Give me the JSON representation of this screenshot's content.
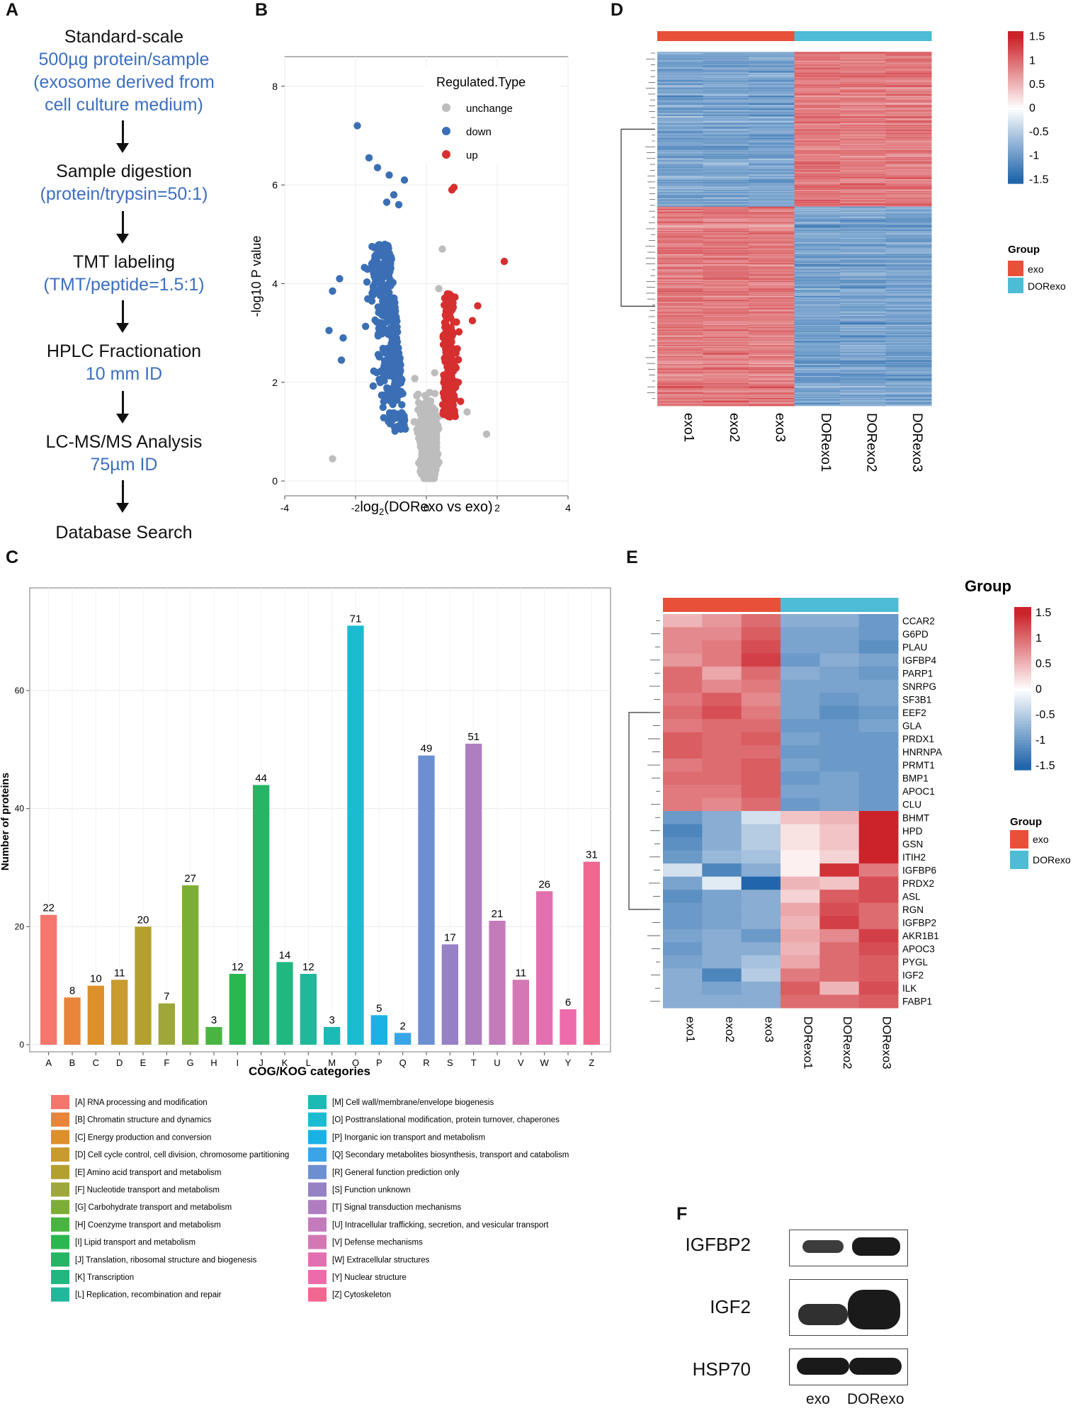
{
  "panels": {
    "A": "A",
    "B": "B",
    "C": "C",
    "D": "D",
    "E": "E",
    "F": "F"
  },
  "colors": {
    "blue_text": "#3d6fbf",
    "up": "#d62f2f",
    "down": "#3b6fb5",
    "unchange": "#bdbdbd",
    "group_exo": "#e8503a",
    "group_dorexo": "#4dbcd4",
    "heat_high": "#cc2229",
    "heat_mid": "#ffffff",
    "heat_low": "#2166ac"
  },
  "workflow": [
    {
      "title": "Standard-scale",
      "details": [
        "500µg protein/sample",
        "(exosome derived from",
        "cell culture medium)"
      ]
    },
    {
      "title": "Sample digestion",
      "details": [
        "(protein/trypsin=50:1)"
      ]
    },
    {
      "title": "TMT labeling",
      "details": [
        "(TMT/peptide=1.5:1)"
      ]
    },
    {
      "title": "HPLC Fractionation",
      "details": [
        "10 mm ID"
      ]
    },
    {
      "title": "LC-MS/MS Analysis",
      "details": [
        "75µm ID"
      ]
    },
    {
      "title": "Database Search",
      "details": []
    }
  ],
  "chart_data": [
    {
      "id": "B",
      "type": "scatter",
      "title": "",
      "xlabel_main": "log",
      "xlabel_sub": "2",
      "xlabel_rest": "(DORexo  vs exo)",
      "ylabel": "-log10 P value",
      "xlim": [
        -4,
        4
      ],
      "ylim": [
        -0.3,
        8.6
      ],
      "xticks": [
        "-4",
        "-2",
        "0",
        "2",
        "4"
      ],
      "yticks": [
        "0",
        "2",
        "4",
        "6",
        "8"
      ],
      "legend_title": "Regulated.Type",
      "legend": [
        "unchange",
        "down",
        "up"
      ],
      "highlight_points": {
        "down": [
          [
            -1.95,
            7.2
          ],
          [
            -1.62,
            6.55
          ],
          [
            -1.38,
            6.35
          ],
          [
            -1.05,
            6.2
          ],
          [
            -0.62,
            6.1
          ],
          [
            -0.92,
            5.8
          ],
          [
            -1.12,
            5.65
          ],
          [
            -0.78,
            5.6
          ],
          [
            -2.45,
            4.1
          ],
          [
            -2.65,
            3.85
          ],
          [
            -2.75,
            3.05
          ],
          [
            -2.35,
            2.9
          ],
          [
            -2.4,
            2.45
          ]
        ],
        "up": [
          [
            0.78,
            5.95
          ],
          [
            0.72,
            5.9
          ],
          [
            2.2,
            4.45
          ],
          [
            1.45,
            3.55
          ],
          [
            1.3,
            3.25
          ],
          [
            0.9,
            2.0
          ],
          [
            0.6,
            1.75
          ]
        ],
        "unchange": [
          [
            -2.65,
            0.45
          ],
          [
            0.45,
            4.7
          ],
          [
            0.35,
            3.9
          ],
          [
            1.15,
            1.4
          ],
          [
            1.7,
            0.95
          ]
        ]
      },
      "counts": {
        "down": 340,
        "up": 210,
        "unchange": 700
      }
    },
    {
      "id": "C",
      "type": "bar",
      "title": "",
      "xlabel": "COG/KOG categories",
      "ylabel": "Number of proteins",
      "ylim": [
        0,
        75
      ],
      "yticks": [
        "0",
        "20",
        "40",
        "60"
      ],
      "categories": [
        "A",
        "B",
        "C",
        "D",
        "E",
        "F",
        "G",
        "H",
        "I",
        "J",
        "K",
        "L",
        "M",
        "O",
        "P",
        "Q",
        "R",
        "S",
        "T",
        "U",
        "V",
        "W",
        "Y",
        "Z"
      ],
      "values": [
        22,
        8,
        10,
        11,
        20,
        7,
        27,
        3,
        12,
        44,
        14,
        12,
        3,
        71,
        5,
        2,
        49,
        17,
        51,
        21,
        11,
        26,
        6,
        31
      ],
      "bar_colors": [
        "#f4766d",
        "#e9843b",
        "#dd8f2a",
        "#c99a2d",
        "#b4a02e",
        "#9ea83a",
        "#7cae35",
        "#49b540",
        "#2bb750",
        "#26b565",
        "#21b781",
        "#1fb89a",
        "#1cbab4",
        "#1bbbd1",
        "#1ab2e5",
        "#3aa4e8",
        "#6c8fd2",
        "#9681c5",
        "#ae7ec0",
        "#c47bbc",
        "#d378b3",
        "#e270b0",
        "#ee6bab",
        "#f2678f"
      ],
      "legend_left": [
        "[A] RNA processing and modification",
        "[B] Chromatin structure and dynamics",
        "[C] Energy production and conversion",
        "[D] Cell cycle control, cell division, chromosome partitioning",
        "[E] Amino acid transport and metabolism",
        "[F] Nucleotide transport and metabolism",
        "[G] Carbohydrate transport and metabolism",
        "[H] Coenzyme transport and metabolism",
        "[I] Lipid transport and metabolism",
        "[J] Translation, ribosomal structure and biogenesis",
        "[K] Transcription",
        "[L] Replication, recombination and repair"
      ],
      "legend_right": [
        "[M] Cell wall/membrane/envelope biogenesis",
        "[O] Posttranslational modification, protein turnover, chaperones",
        "[P] Inorganic ion transport and metabolism",
        "[Q] Secondary metabolites biosynthesis, transport and catabolism",
        "[R] General function prediction only",
        "[S] Function unknown",
        "[T] Signal transduction mechanisms",
        "[U] Intracellular trafficking, secretion, and vesicular transport",
        "[V] Defense mechanisms",
        "[W] Extracellular structures",
        "[Y] Nuclear structure",
        "[Z] Cytoskeleton"
      ]
    },
    {
      "id": "D",
      "type": "heatmap",
      "title": "",
      "samples": [
        "exo1",
        "exo2",
        "exo3",
        "DORexo1",
        "DORexo2",
        "DORexo3"
      ],
      "groups": [
        "exo",
        "exo",
        "exo",
        "DORexo",
        "DORexo",
        "DORexo"
      ],
      "scale_ticks": [
        "1.5",
        "1",
        "0.5",
        "0",
        "-0.5",
        "-1",
        "-1.5"
      ],
      "scale_range": [
        -1.5,
        1.5
      ],
      "legend_title": "Group",
      "legend": [
        "exo",
        "DORexo"
      ],
      "row_clusters": [
        {
          "rows": 140,
          "exo_mean": -0.9,
          "dorexo_mean": 0.9
        },
        {
          "rows": 180,
          "exo_mean": 0.9,
          "dorexo_mean": -0.9
        }
      ]
    },
    {
      "id": "E",
      "type": "heatmap",
      "title": "",
      "samples": [
        "exo1",
        "exo2",
        "exo3",
        "DORexo1",
        "DORexo2",
        "DORexo3"
      ],
      "groups": [
        "exo",
        "exo",
        "exo",
        "DORexo",
        "DORexo",
        "DORexo"
      ],
      "group_label": "Group",
      "scale_ticks": [
        "1.5",
        "1",
        "0.5",
        "0",
        "-0.5",
        "-1",
        "-1.5"
      ],
      "scale_range": [
        -1.5,
        1.5
      ],
      "legend_title": "Group",
      "legend": [
        "exo",
        "DORexo"
      ],
      "genes": [
        "CCAR2",
        "G6PD",
        "PLAU",
        "IGFBP4",
        "PARP1",
        "SNRPG",
        "SF3B1",
        "EEF2",
        "GLA",
        "PRDX1",
        "HNRNPA",
        "PRMT1",
        "BMP1",
        "APOC1",
        "CLU",
        "BHMT",
        "HPD",
        "GSN",
        "ITIH2",
        "IGFBP6",
        "PRDX2",
        "ASL",
        "RGN",
        "IGFBP2",
        "AKR1B1",
        "APOC3",
        "PYGL",
        "IGF2",
        "ILK",
        "FABP1"
      ],
      "values": [
        [
          0.5,
          0.7,
          1.0,
          -0.8,
          -0.8,
          -1.0
        ],
        [
          0.8,
          0.8,
          1.1,
          -0.9,
          -0.9,
          -1.0
        ],
        [
          0.8,
          0.9,
          1.2,
          -0.9,
          -0.9,
          -1.1
        ],
        [
          0.7,
          0.9,
          1.3,
          -1.0,
          -0.8,
          -0.9
        ],
        [
          1.0,
          0.6,
          1.0,
          -0.8,
          -0.9,
          -1.0
        ],
        [
          1.0,
          0.8,
          0.9,
          -0.9,
          -0.9,
          -0.9
        ],
        [
          0.9,
          1.1,
          0.8,
          -0.9,
          -1.0,
          -0.9
        ],
        [
          1.0,
          1.2,
          0.9,
          -0.9,
          -1.1,
          -1.0
        ],
        [
          0.9,
          1.0,
          1.0,
          -1.0,
          -1.0,
          -0.9
        ],
        [
          1.1,
          1.0,
          1.1,
          -0.9,
          -1.0,
          -1.0
        ],
        [
          1.1,
          1.0,
          1.0,
          -1.0,
          -1.0,
          -1.0
        ],
        [
          0.9,
          1.0,
          1.1,
          -0.9,
          -1.0,
          -1.0
        ],
        [
          1.0,
          1.0,
          1.1,
          -1.0,
          -0.9,
          -1.0
        ],
        [
          0.9,
          0.9,
          1.1,
          -0.9,
          -0.9,
          -1.0
        ],
        [
          0.9,
          0.8,
          1.0,
          -1.0,
          -0.9,
          -1.0
        ],
        [
          -1.0,
          -0.8,
          -0.3,
          0.4,
          0.5,
          1.5
        ],
        [
          -1.2,
          -0.8,
          -0.5,
          0.2,
          0.4,
          1.5
        ],
        [
          -1.1,
          -0.8,
          -0.5,
          0.2,
          0.4,
          1.5
        ],
        [
          -1.0,
          -0.7,
          -0.6,
          0.1,
          0.3,
          1.5
        ],
        [
          -0.3,
          -1.2,
          -0.8,
          0.1,
          1.4,
          0.9
        ],
        [
          -0.9,
          -0.2,
          -1.5,
          0.5,
          0.4,
          1.2
        ],
        [
          -1.1,
          -0.9,
          -0.8,
          0.3,
          1.1,
          1.2
        ],
        [
          -1.0,
          -0.9,
          -0.8,
          0.6,
          1.2,
          1.0
        ],
        [
          -1.0,
          -0.9,
          -0.8,
          0.5,
          1.3,
          1.0
        ],
        [
          -0.9,
          -0.8,
          -1.0,
          0.6,
          0.8,
          1.3
        ],
        [
          -1.0,
          -0.8,
          -0.8,
          0.5,
          1.0,
          1.2
        ],
        [
          -0.9,
          -0.8,
          -0.6,
          0.6,
          1.0,
          1.1
        ],
        [
          -0.8,
          -1.2,
          -0.5,
          0.9,
          1.0,
          1.1
        ],
        [
          -0.8,
          -0.9,
          -0.8,
          1.1,
          0.5,
          1.2
        ],
        [
          -0.8,
          -0.8,
          -0.8,
          1.0,
          1.0,
          1.1
        ]
      ]
    }
  ],
  "blot": {
    "proteins": [
      "IGFBP2",
      "IGF2",
      "HSP70"
    ],
    "lanes": [
      "exo",
      "DORexo"
    ]
  }
}
